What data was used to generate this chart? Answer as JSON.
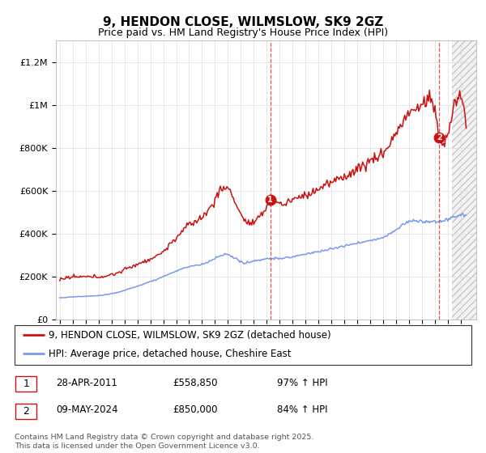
{
  "title": "9, HENDON CLOSE, WILMSLOW, SK9 2GZ",
  "subtitle": "Price paid vs. HM Land Registry's House Price Index (HPI)",
  "hpi_color": "#7799ee",
  "price_color": "#cc1111",
  "vline_color": "#dd3333",
  "grid_color": "#dddddd",
  "bg_color": "#ffffff",
  "ylim": [
    0,
    1300000
  ],
  "yticks": [
    0,
    200000,
    400000,
    600000,
    800000,
    1000000,
    1200000
  ],
  "ytick_labels": [
    "£0",
    "£200K",
    "£400K",
    "£600K",
    "£800K",
    "£1M",
    "£1.2M"
  ],
  "xlim_start": 1994.7,
  "xlim_end": 2027.2,
  "hatch_start": 2025.3,
  "transaction1_x": 2011.28,
  "transaction1_y": 558850,
  "transaction2_x": 2024.35,
  "transaction2_y": 850000,
  "legend_line1": "9, HENDON CLOSE, WILMSLOW, SK9 2GZ (detached house)",
  "legend_line2": "HPI: Average price, detached house, Cheshire East",
  "annotation1_date": "28-APR-2011",
  "annotation1_price": "£558,850",
  "annotation1_pct": "97% ↑ HPI",
  "annotation2_date": "09-MAY-2024",
  "annotation2_price": "£850,000",
  "annotation2_pct": "84% ↑ HPI",
  "footer": "Contains HM Land Registry data © Crown copyright and database right 2025.\nThis data is licensed under the Open Government Licence v3.0."
}
